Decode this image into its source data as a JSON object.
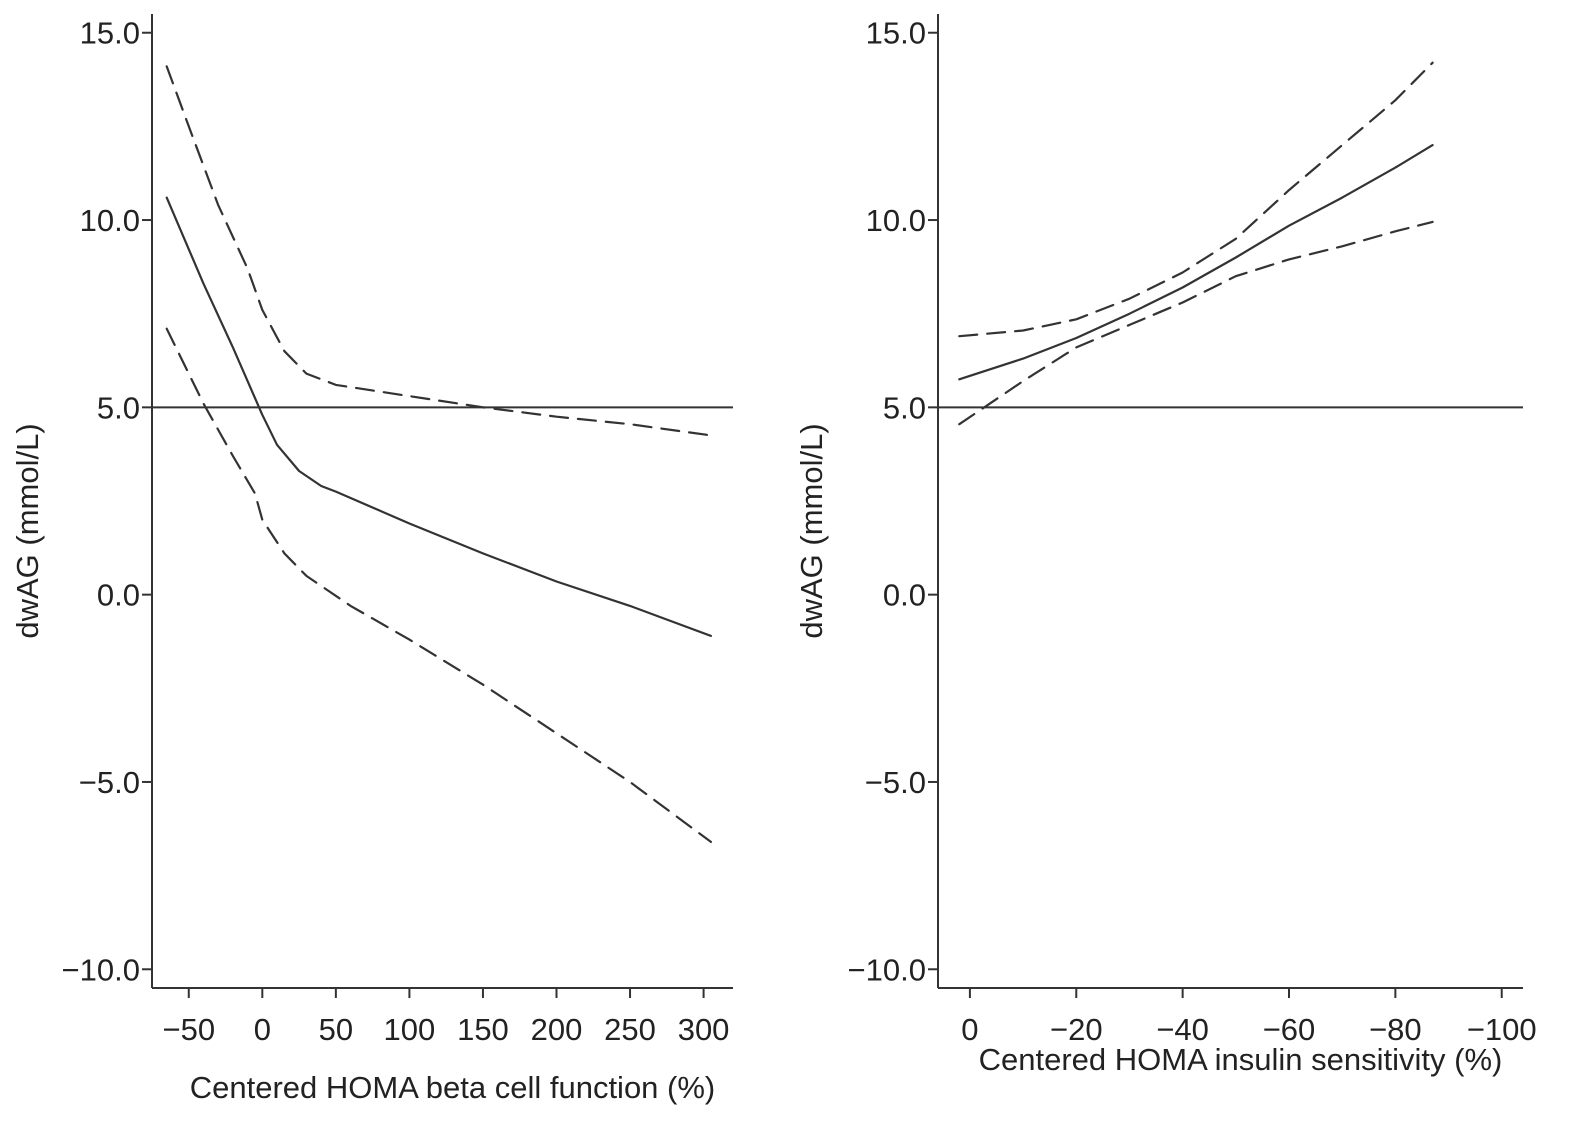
{
  "chart_data": [
    {
      "type": "line",
      "xlabel": "Centered HOMA beta cell function (%)",
      "ylabel": "dwAG (mmol/L)",
      "xlim": [
        -75,
        320
      ],
      "ylim": [
        -10.5,
        15.5
      ],
      "xticks": [
        -50,
        0,
        50,
        100,
        150,
        200,
        250,
        300
      ],
      "xtick_labels": [
        "−50",
        "0",
        "50",
        "100",
        "150",
        "200",
        "250",
        "300"
      ],
      "yticks": [
        15,
        10,
        5,
        0,
        -5,
        -10
      ],
      "ytick_labels": [
        "15.0",
        "10.0",
        "5.0",
        "0.0",
        "−5.0",
        "−10.0"
      ],
      "reference_line_y": 5.0,
      "series": [
        {
          "style": "solid",
          "x": [
            -65,
            -40,
            -20,
            0,
            10,
            25,
            40,
            50,
            100,
            150,
            200,
            250,
            305
          ],
          "y": [
            10.6,
            8.3,
            6.6,
            4.8,
            4.0,
            3.3,
            2.9,
            2.75,
            1.9,
            1.1,
            0.35,
            -0.3,
            -1.1
          ]
        },
        {
          "style": "dashed",
          "x": [
            -65,
            -50,
            -30,
            -10,
            0,
            15,
            30,
            50,
            100,
            150,
            200,
            250,
            305
          ],
          "y": [
            14.1,
            12.5,
            10.4,
            8.7,
            7.6,
            6.5,
            5.9,
            5.6,
            5.3,
            5.0,
            4.75,
            4.55,
            4.25
          ]
        },
        {
          "style": "dashed",
          "x": [
            -65,
            -40,
            -20,
            -5,
            0,
            15,
            30,
            45,
            60,
            100,
            150,
            200,
            250,
            305
          ],
          "y": [
            7.1,
            5.1,
            3.7,
            2.7,
            2.0,
            1.1,
            0.5,
            0.1,
            -0.3,
            -1.2,
            -2.4,
            -3.7,
            -5.0,
            -6.6
          ]
        }
      ]
    },
    {
      "type": "line",
      "xlabel": "Centered HOMA insulin sensitivity (%)",
      "ylabel": "dwAG (mmol/L)",
      "xlim": [
        6,
        -104
      ],
      "ylim": [
        -10.5,
        15.5
      ],
      "xticks": [
        0,
        -20,
        -40,
        -60,
        -80,
        -100
      ],
      "xtick_labels": [
        "0",
        "−20",
        "−40",
        "−60",
        "−80",
        "−100"
      ],
      "yticks": [
        15,
        10,
        5,
        0,
        -5,
        -10
      ],
      "ytick_labels": [
        "15.0",
        "10.0",
        "5.0",
        "0.0",
        "−5.0",
        "−10.0"
      ],
      "reference_line_y": 5.0,
      "series": [
        {
          "style": "solid",
          "x": [
            2,
            -10,
            -20,
            -30,
            -40,
            -50,
            -60,
            -70,
            -80,
            -87
          ],
          "y": [
            5.75,
            6.3,
            6.85,
            7.5,
            8.2,
            9.0,
            9.85,
            10.6,
            11.4,
            12.0
          ]
        },
        {
          "style": "dashed",
          "x": [
            2,
            -10,
            -20,
            -30,
            -40,
            -50,
            -60,
            -70,
            -80,
            -87
          ],
          "y": [
            6.9,
            7.05,
            7.35,
            7.9,
            8.6,
            9.5,
            10.8,
            12.0,
            13.2,
            14.2
          ]
        },
        {
          "style": "dashed",
          "x": [
            2,
            -10,
            -20,
            -30,
            -40,
            -50,
            -60,
            -70,
            -80,
            -87
          ],
          "y": [
            4.55,
            5.7,
            6.6,
            7.2,
            7.8,
            8.5,
            8.95,
            9.3,
            9.7,
            9.95
          ]
        }
      ]
    }
  ]
}
